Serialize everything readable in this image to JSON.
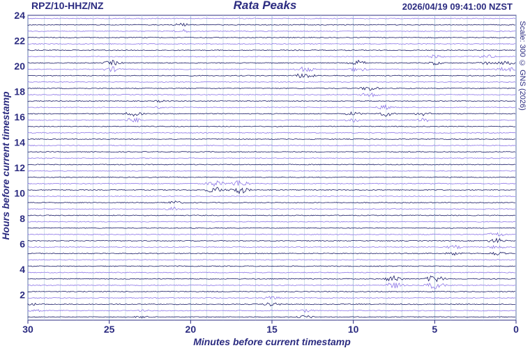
{
  "header": {
    "station": "RPZ/10-HHZ/NZ",
    "title": "Rata Peaks",
    "timestamp": "2026/04/19 09:41:00 NZST",
    "scale_note": "Scale: 300 © GNS (2026)"
  },
  "chart_data": {
    "type": "line",
    "title": "Rata Peaks",
    "xlabel": "Minutes before current timestamp",
    "ylabel": "Hours before current timestamp",
    "xlim": [
      30,
      0
    ],
    "ylim": [
      0,
      24
    ],
    "x_ticks": [
      "30",
      "25",
      "20",
      "15",
      "10",
      "5",
      "0"
    ],
    "y_ticks": [
      "2",
      "4",
      "6",
      "8",
      "10",
      "12",
      "14",
      "16",
      "18",
      "20",
      "22",
      "24"
    ],
    "grid": true,
    "trace_count": 48,
    "trace_colors": [
      "#1a1a66",
      "#8b73e6"
    ],
    "bursts": [
      {
        "hour": 23.0,
        "minute": 20.5,
        "amplitude": 3
      },
      {
        "hour": 20.5,
        "minute": 5.0,
        "amplitude": 3
      },
      {
        "hour": 20.5,
        "minute": 1.8,
        "amplitude": 3
      },
      {
        "hour": 20.0,
        "minute": 24.8,
        "amplitude": 4
      },
      {
        "hour": 20.0,
        "minute": 9.7,
        "amplitude": 4
      },
      {
        "hour": 20.0,
        "minute": 0.6,
        "amplitude": 4
      },
      {
        "hour": 19.5,
        "minute": 13.0,
        "amplitude": 5
      },
      {
        "hour": 18.0,
        "minute": 9.0,
        "amplitude": 4
      },
      {
        "hour": 17.0,
        "minute": 21.8,
        "amplitude": 2
      },
      {
        "hour": 16.5,
        "minute": 8.0,
        "amplitude": 4
      },
      {
        "hour": 16.0,
        "minute": 23.5,
        "amplitude": 4
      },
      {
        "hour": 16.0,
        "minute": 10.0,
        "amplitude": 3
      },
      {
        "hour": 16.0,
        "minute": 5.7,
        "amplitude": 3
      },
      {
        "hour": 10.5,
        "minute": 18.5,
        "amplitude": 5
      },
      {
        "hour": 10.5,
        "minute": 17.0,
        "amplitude": 6
      },
      {
        "hour": 9.0,
        "minute": 21.0,
        "amplitude": 3
      },
      {
        "hour": 6.5,
        "minute": 1.2,
        "amplitude": 4
      },
      {
        "hour": 5.5,
        "minute": 3.8,
        "amplitude": 3
      },
      {
        "hour": 5.5,
        "minute": 1.2,
        "amplitude": 3
      },
      {
        "hour": 3.0,
        "minute": 7.5,
        "amplitude": 5
      },
      {
        "hour": 3.0,
        "minute": 5.0,
        "amplitude": 6
      },
      {
        "hour": 1.5,
        "minute": 15.0,
        "amplitude": 3
      },
      {
        "hour": 0.5,
        "minute": 13.0,
        "amplitude": 3
      },
      {
        "hour": 0.5,
        "minute": 23.0,
        "amplitude": 2
      },
      {
        "hour": 1.0,
        "minute": 29.5,
        "amplitude": 2
      }
    ]
  }
}
